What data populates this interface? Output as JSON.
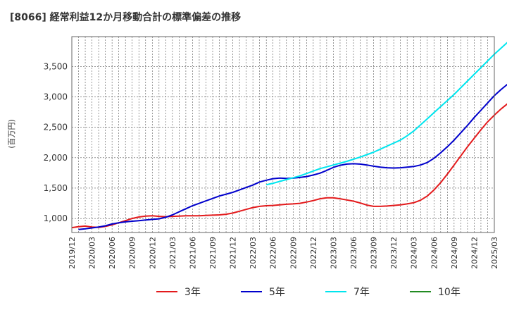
{
  "chart_data": {
    "type": "line",
    "title": "[8066]  経常利益12か月移動合計の標準偏差の推移",
    "ylabel": "(百万円)",
    "xlabel": "",
    "ylim": [
      770,
      3990
    ],
    "y_ticks": [
      1000,
      1500,
      2000,
      2500,
      3000,
      3500
    ],
    "y_tick_labels": [
      "1,000",
      "1,500",
      "2,000",
      "2,500",
      "3,000",
      "3,500"
    ],
    "x_tick_labels": [
      "2019/12",
      "2020/03",
      "2020/06",
      "2020/09",
      "2020/12",
      "2021/03",
      "2021/06",
      "2021/09",
      "2021/12",
      "2022/03",
      "2022/06",
      "2022/09",
      "2022/12",
      "2023/03",
      "2023/06",
      "2023/09",
      "2023/12",
      "2024/03",
      "2024/06",
      "2024/09",
      "2024/12",
      "2025/03"
    ],
    "grid": true,
    "legend_position": "bottom",
    "series": [
      {
        "name": "3年",
        "color": "#e31a1c",
        "start_index": 0,
        "values": [
          850,
          865,
          875,
          860,
          855,
          870,
          895,
          930,
          965,
          1000,
          1025,
          1040,
          1045,
          1035,
          1030,
          1035,
          1040,
          1045,
          1045,
          1045,
          1050,
          1055,
          1060,
          1070,
          1090,
          1120,
          1150,
          1180,
          1200,
          1210,
          1215,
          1225,
          1235,
          1240,
          1250,
          1270,
          1295,
          1325,
          1340,
          1340,
          1325,
          1305,
          1285,
          1255,
          1220,
          1200,
          1200,
          1205,
          1215,
          1225,
          1240,
          1260,
          1300,
          1370,
          1470,
          1590,
          1730,
          1880,
          2030,
          2180,
          2320,
          2460,
          2590,
          2700,
          2800,
          2890,
          2990,
          3080,
          3180
        ]
      },
      {
        "name": "5年",
        "color": "#0000cc",
        "start_index": 1,
        "values": [
          820,
          830,
          845,
          860,
          880,
          910,
          930,
          945,
          955,
          965,
          975,
          985,
          995,
          1020,
          1060,
          1110,
          1160,
          1210,
          1250,
          1290,
          1330,
          1370,
          1400,
          1430,
          1470,
          1510,
          1550,
          1600,
          1630,
          1655,
          1665,
          1660,
          1665,
          1675,
          1690,
          1715,
          1745,
          1790,
          1840,
          1875,
          1895,
          1900,
          1895,
          1880,
          1860,
          1845,
          1835,
          1830,
          1835,
          1845,
          1855,
          1880,
          1920,
          1990,
          2080,
          2180,
          2290,
          2410,
          2530,
          2660,
          2780,
          2900,
          3020,
          3120,
          3210,
          3310,
          3430,
          3550
        ]
      },
      {
        "name": "7年",
        "color": "#00e5ee",
        "start_index": 29,
        "values": [
          1555,
          1580,
          1610,
          1640,
          1670,
          1700,
          1740,
          1780,
          1820,
          1850,
          1880,
          1910,
          1940,
          1975,
          2010,
          2050,
          2090,
          2140,
          2190,
          2240,
          2290,
          2360,
          2440,
          2540,
          2640,
          2740,
          2840,
          2940,
          3040,
          3150,
          3260,
          3370,
          3480,
          3590,
          3700,
          3800,
          3900
        ]
      },
      {
        "name": "10年",
        "color": "#228b22",
        "start_index": 0,
        "values": []
      }
    ]
  }
}
